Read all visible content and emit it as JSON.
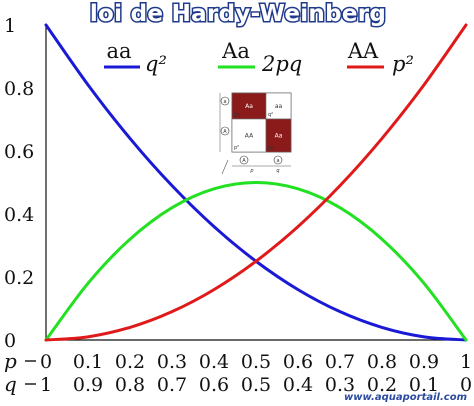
{
  "chart_data": {
    "type": "line",
    "title": "loi de Hardy-Weinberg",
    "x": [
      0,
      0.1,
      0.2,
      0.3,
      0.4,
      0.5,
      0.6,
      0.7,
      0.8,
      0.9,
      1
    ],
    "xlim": [
      0,
      1
    ],
    "ylim": [
      0,
      1
    ],
    "y_ticks": [
      "0",
      "0.2",
      "0.4",
      "0.6",
      "0.8",
      "1"
    ],
    "x_row_p": {
      "label": "p",
      "ticks": [
        "0",
        "0.1",
        "0.2",
        "0.3",
        "0.4",
        "0.5",
        "0.6",
        "0.7",
        "0.8",
        "0.9",
        "1"
      ]
    },
    "x_row_q": {
      "label": "q",
      "ticks": [
        "1",
        "0.9",
        "0.8",
        "0.7",
        "0.6",
        "0.5",
        "0.4",
        "0.3",
        "0.2",
        "0.1",
        "0"
      ]
    },
    "series": [
      {
        "genotype": "aa",
        "expression": "q²",
        "color": "#1a1ad6",
        "values": [
          1,
          0.81,
          0.64,
          0.49,
          0.36,
          0.25,
          0.16,
          0.09,
          0.04,
          0.01,
          0
        ]
      },
      {
        "genotype": "Aa",
        "expression": "2pq",
        "color": "#22e022",
        "values": [
          0,
          0.18,
          0.32,
          0.42,
          0.48,
          0.5,
          0.48,
          0.42,
          0.32,
          0.18,
          0
        ]
      },
      {
        "genotype": "AA",
        "expression": "p²",
        "color": "#e01a1a",
        "values": [
          0,
          0.01,
          0.04,
          0.09,
          0.16,
          0.25,
          0.36,
          0.49,
          0.64,
          0.81,
          1
        ]
      }
    ],
    "grid": false,
    "legend": "top"
  },
  "inset": {
    "cells": [
      {
        "text": "Aa",
        "color": "#8b1a1a"
      },
      {
        "text": "aa",
        "color": "#ffffff"
      },
      {
        "text": "AA",
        "color": "#ffffff"
      },
      {
        "text": "Aa",
        "color": "#8b1a1a"
      }
    ],
    "corner_labels": [
      "pq",
      "q²",
      "p²",
      "pq"
    ],
    "allele_marks": [
      "a",
      "A",
      "A",
      "a"
    ],
    "axis_labels": [
      "p",
      "q"
    ]
  },
  "watermark": "www.aquaportail.com"
}
